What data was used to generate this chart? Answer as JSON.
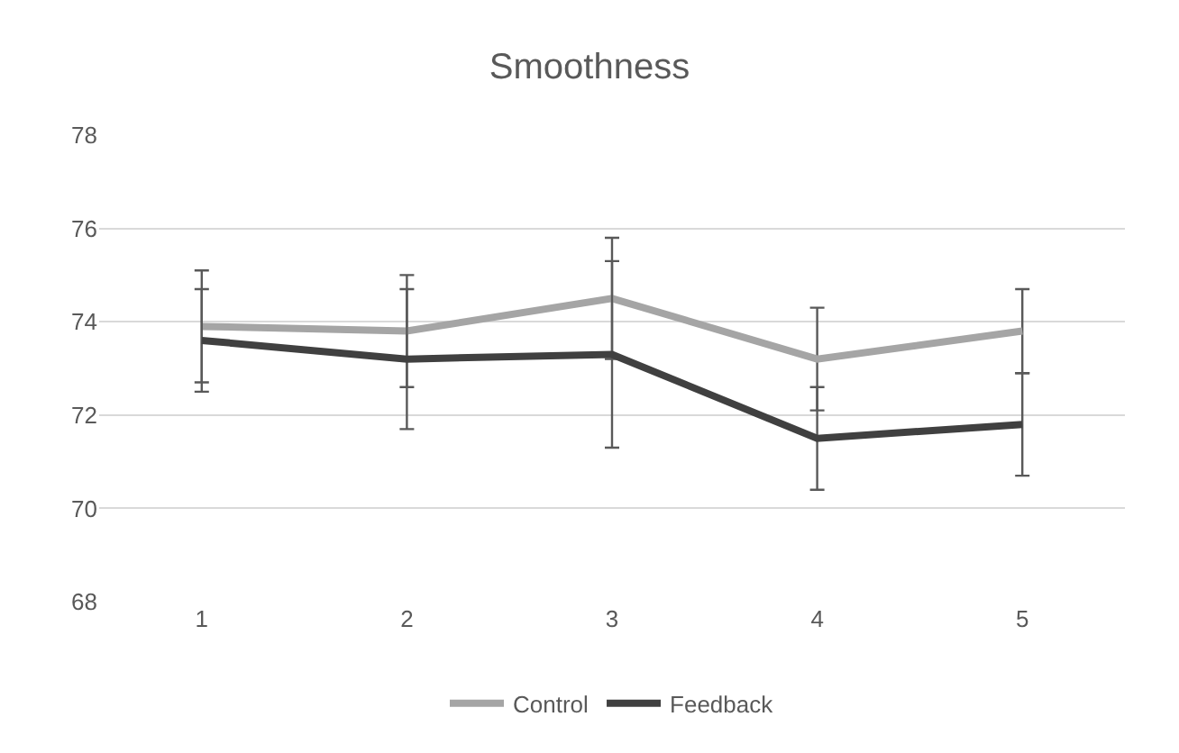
{
  "chart_data": {
    "type": "line",
    "title": "Smoothness",
    "categories": [
      "1",
      "2",
      "3",
      "4",
      "5"
    ],
    "series": [
      {
        "name": "Control",
        "color": "#a5a5a5",
        "values": [
          73.9,
          73.8,
          74.5,
          73.2,
          73.8
        ],
        "errors": [
          1.2,
          1.2,
          1.3,
          1.1,
          0.9
        ]
      },
      {
        "name": "Feedback",
        "color": "#404040",
        "values": [
          73.6,
          73.2,
          73.3,
          71.5,
          71.8
        ],
        "errors": [
          1.1,
          1.5,
          2.0,
          1.1,
          1.1
        ]
      }
    ],
    "ylim": [
      68,
      78
    ],
    "yticks": [
      68,
      70,
      72,
      74,
      76,
      78
    ],
    "grid": "y",
    "legend": "bottom",
    "marker": "none",
    "line_style": "solid"
  }
}
